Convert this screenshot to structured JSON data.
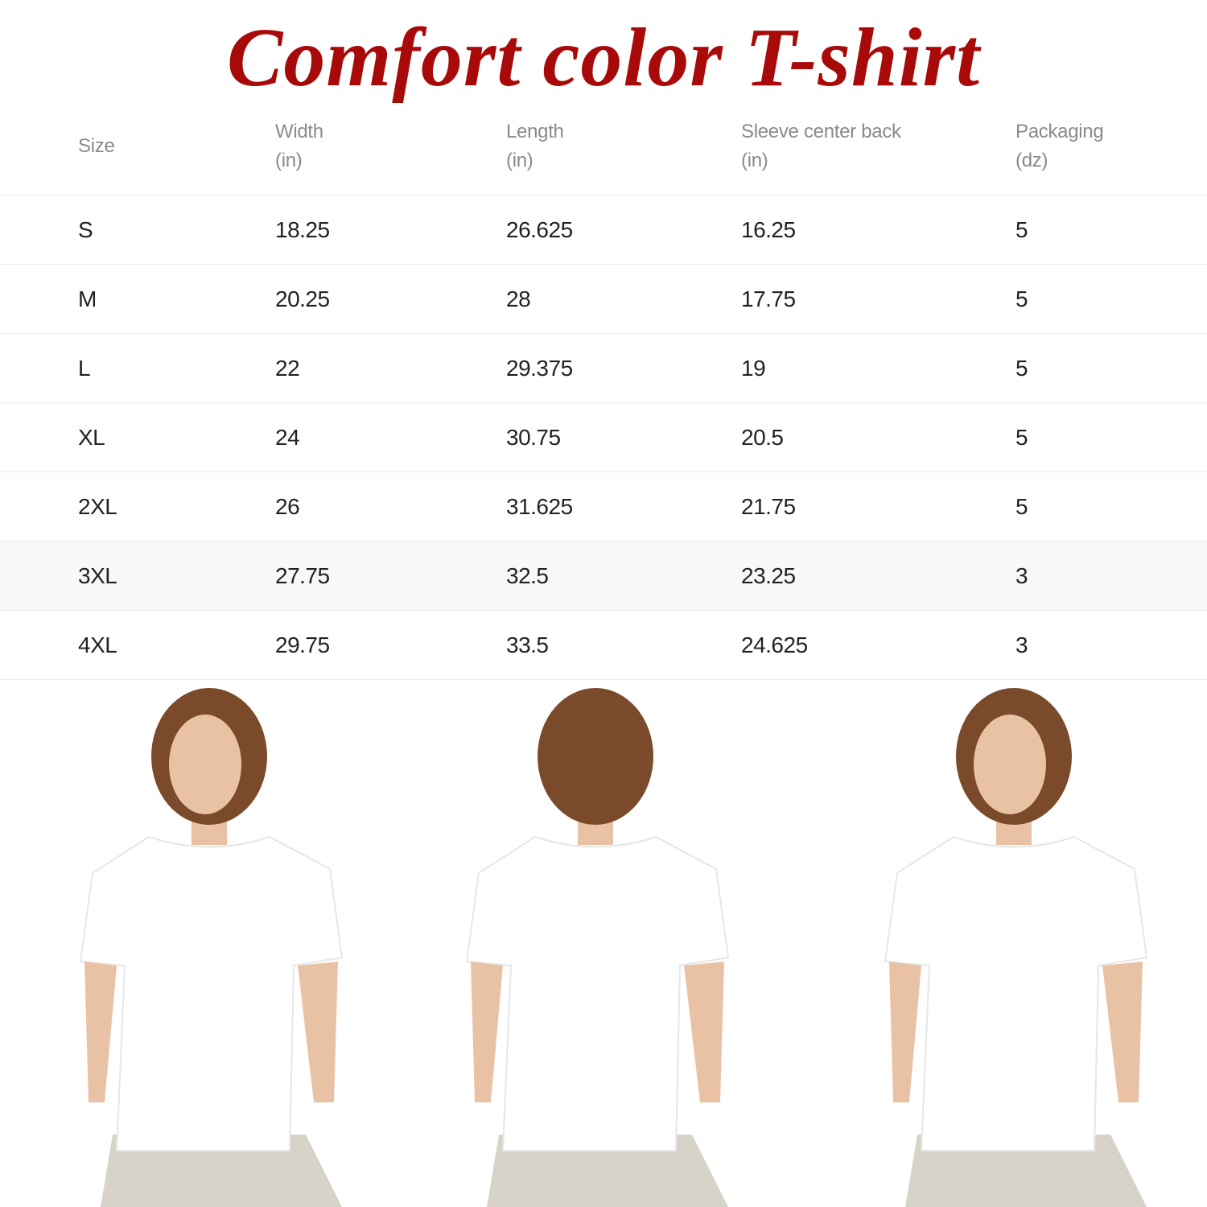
{
  "title": "Comfort color T-shirt",
  "table": {
    "headers": [
      {
        "line1": "Size",
        "line2": ""
      },
      {
        "line1": "Width",
        "line2": "(in)"
      },
      {
        "line1": "Length",
        "line2": "(in)"
      },
      {
        "line1": "Sleeve center back",
        "line2": "(in)"
      },
      {
        "line1": "Packaging",
        "line2": "(dz)"
      }
    ],
    "rows": [
      [
        "S",
        "18.25",
        "26.625",
        "16.25",
        "5"
      ],
      [
        "M",
        "20.25",
        "28",
        "17.75",
        "5"
      ],
      [
        "L",
        "22",
        "29.375",
        "19",
        "5"
      ],
      [
        "XL",
        "24",
        "30.75",
        "20.5",
        "5"
      ],
      [
        "2XL",
        "26",
        "31.625",
        "21.75",
        "5"
      ],
      [
        "3XL",
        "27.75",
        "32.5",
        "23.25",
        "3"
      ],
      [
        "4XL",
        "29.75",
        "33.5",
        "24.625",
        "3"
      ]
    ]
  },
  "colors": {
    "title": "#a80a0a",
    "shirt": "#ffffff",
    "pants": "#d8d3c8",
    "hair": "#7a4a2a",
    "skin": "#e9c2a6"
  }
}
